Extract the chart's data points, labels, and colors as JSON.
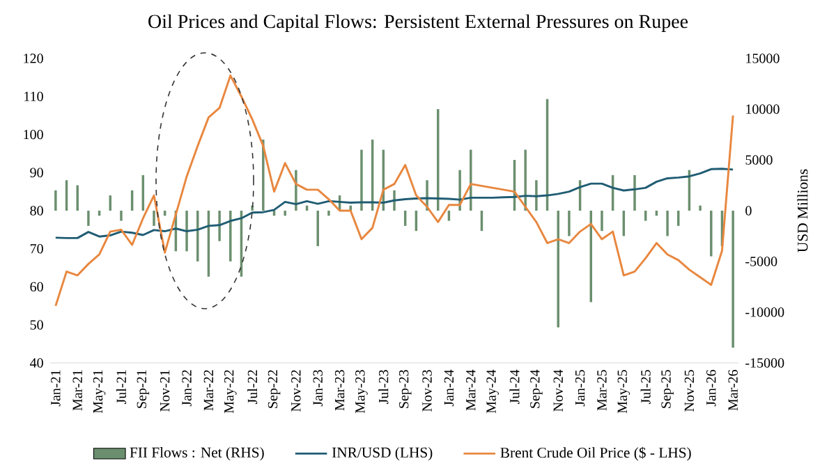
{
  "chart_data": {
    "type": "bar",
    "title": "Oil Prices and Capital Flows: Persistent External Pressures on Rupee",
    "y2label": "USD Millions",
    "categories": [
      "Jan-21",
      null,
      "Mar-21",
      null,
      "May-21",
      null,
      "Jul-21",
      null,
      "Sep-21",
      null,
      "Nov-21",
      null,
      "Jan-22",
      null,
      "Mar-22",
      null,
      "May-22",
      null,
      "Jul-22",
      null,
      "Sep-22",
      null,
      "Nov-22",
      null,
      "Jan-23",
      null,
      "Mar-23",
      null,
      "May-23",
      null,
      "Jul-23",
      null,
      "Sep-23",
      null,
      "Nov-23",
      null,
      "Jan-24",
      null,
      "Mar-24",
      null,
      "May-24",
      null,
      "Jul-24",
      null,
      "Sep-24",
      null,
      "Nov-24",
      null,
      "Jan-25",
      null,
      "Mar-25",
      null,
      "May-25",
      null,
      "Jul-25",
      null,
      "Sep-25",
      null,
      "Nov-25",
      null,
      "Jan-26",
      null,
      "Mar-26"
    ],
    "series": [
      {
        "name": "FII Flows : Net (RHS)",
        "axis": "y2",
        "color": "#6b8f6e",
        "values": [
          2000,
          3000,
          2500,
          -1500,
          -500,
          1500,
          -1000,
          2000,
          3500,
          -1500,
          -500,
          -4000,
          -4000,
          -5000,
          -6500,
          -3000,
          -5000,
          -6500,
          500,
          7000,
          -500,
          -500,
          4000,
          500,
          -3500,
          -500,
          1500,
          500,
          6000,
          7000,
          6000,
          2000,
          -1500,
          -2000,
          3000,
          10000,
          -1000,
          4000,
          6000,
          -2000,
          0,
          0,
          5000,
          6000,
          3000,
          11000,
          -11500,
          -2500,
          3000,
          -9000,
          -2000,
          3500,
          -2500,
          3500,
          -1000,
          -500,
          -2500,
          -1500,
          4000,
          500,
          -4500,
          -3500,
          -13500
        ]
      },
      {
        "name": "INR/USD (LHS)",
        "type": "line",
        "color": "#1f5c73",
        "values": [
          72.9,
          72.8,
          72.8,
          74.4,
          73.2,
          73.5,
          74.5,
          74.2,
          73.6,
          74.9,
          74.6,
          75.3,
          74.6,
          75,
          76,
          76.2,
          77.3,
          78,
          79.5,
          79.6,
          80.2,
          82.3,
          81.7,
          82.5,
          81.8,
          82.5,
          82.3,
          82.1,
          82.2,
          82.2,
          82.1,
          82.7,
          83,
          83.2,
          83.3,
          83.2,
          83.1,
          82.9,
          83.4,
          83.4,
          83.4,
          83.5,
          83.6,
          83.9,
          83.8,
          84,
          84.4,
          85,
          86.2,
          87.1,
          87.1,
          86,
          85.3,
          85.6,
          86,
          87.6,
          88.5,
          88.7,
          89,
          89.8,
          90.9,
          91,
          90.8
        ]
      },
      {
        "name": "Brent Crude Oil Price ($ - LHS)",
        "type": "line",
        "color": "#e8873f",
        "values": [
          55,
          64,
          63,
          66,
          68.5,
          74.5,
          75,
          71,
          78,
          84,
          69,
          79,
          89,
          97,
          104.5,
          107,
          115.5,
          110,
          104,
          97,
          85,
          92.5,
          87,
          85.5,
          85.5,
          83,
          80,
          80,
          72.5,
          75.5,
          85.5,
          87,
          92,
          84,
          81,
          77,
          81.5,
          81.5,
          87,
          86.5,
          86,
          85.5,
          85,
          81,
          77,
          71.5,
          72.5,
          71.5,
          74.5,
          76.5,
          72.5,
          74.5,
          63,
          64,
          67.5,
          71.5,
          68.5,
          67,
          64.5,
          62.5,
          60.5,
          69.5,
          105
        ]
      }
    ],
    "ylim": [
      40,
      120
    ],
    "yticks": [
      40,
      50,
      60,
      70,
      80,
      90,
      100,
      110,
      120
    ],
    "y2lim": [
      -15000,
      15000
    ],
    "y2ticks": [
      -15000,
      -10000,
      -5000,
      0,
      5000,
      10000,
      15000
    ],
    "legend": "bottom"
  }
}
